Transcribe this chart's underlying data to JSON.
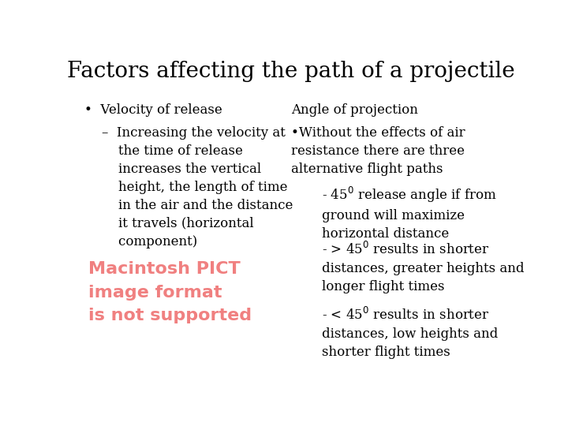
{
  "title": "Factors affecting the path of a projectile",
  "bg_color": "#ffffff",
  "title_fontsize": 20,
  "title_font": "serif",
  "body_fontsize": 12,
  "body_font": "serif",
  "text_color": "#000000",
  "pict_color": "#f08080",
  "pict_text": "Macintosh PICT\nimage format\nis not supported",
  "pict_fontsize": 16,
  "bullet1": "Velocity of release",
  "sub_bullet1": "–  Increasing the velocity at\n    the time of release\n    increases the vertical\n    height, the length of time\n    in the air and the distance\n    it travels (horizontal\n    component)",
  "right_header": "Angle of projection",
  "right_bullet1": "•Without the effects of air\nresistance there are three\nalternative flight paths",
  "right_sub1": "- 45$^0$ release angle if from\nground will maximize\nhorizontal distance",
  "right_sub2": "- > 45$^0$ results in shorter\ndistances, greater heights and\nlonger flight times",
  "right_sub3": "- < 45$^0$ results in shorter\ndistances, low heights and\nshorter flight times"
}
